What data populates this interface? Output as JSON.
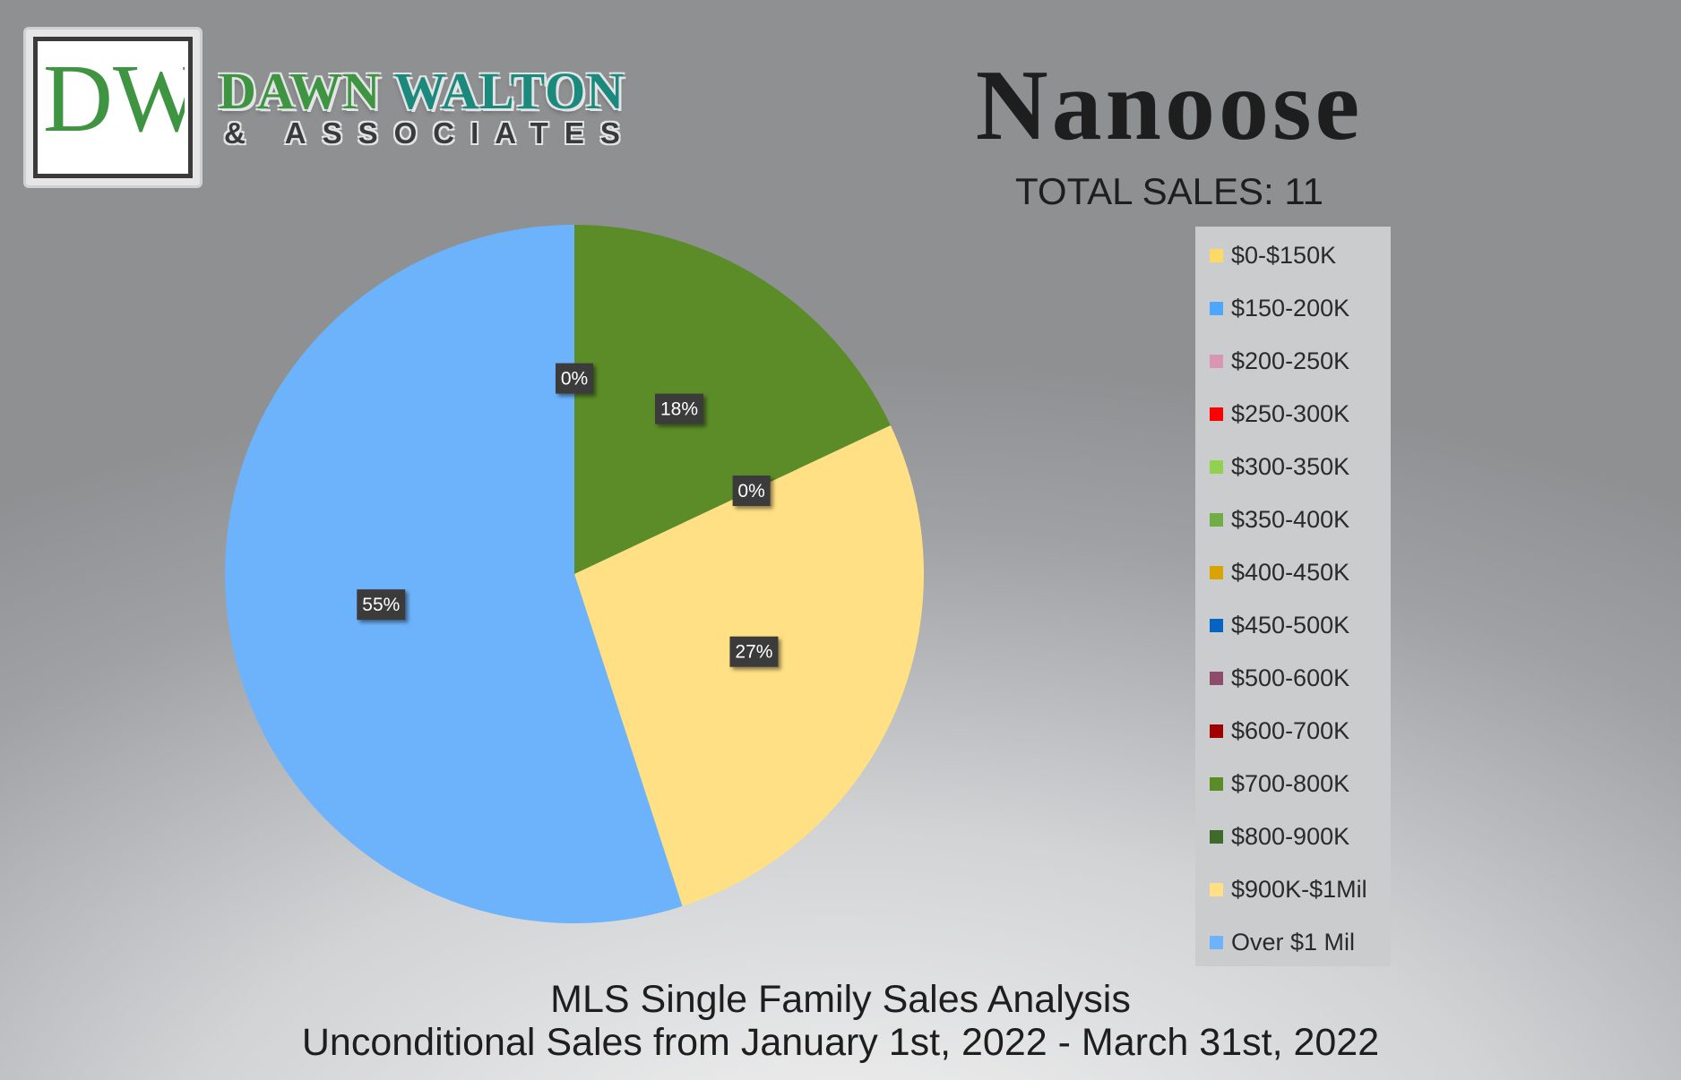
{
  "brand": {
    "logo_letters": "DW",
    "name_first": "DAWN",
    "name_second": "WALTON",
    "subtitle": "& ASSOCIATES",
    "colors": {
      "green": "#3f9442",
      "teal": "#1b8a7c",
      "dark": "#3a3a3a"
    }
  },
  "header": {
    "title": "Nanoose",
    "total_sales": "TOTAL SALES: 11"
  },
  "footer": {
    "line1": "MLS Single Family Sales Analysis",
    "line2": "Unconditional Sales from January 1st, 2022 - March 31st, 2022"
  },
  "chart_data": {
    "type": "pie",
    "title": "",
    "start_angle_deg": 0,
    "direction": "clockwise",
    "legend_placement": "right",
    "slices": [
      {
        "label": "$0-$150K",
        "value": 0,
        "color": "#ffd966"
      },
      {
        "label": "$150-200K",
        "value": 0,
        "color": "#4da6ff"
      },
      {
        "label": "$200-250K",
        "value": 0,
        "color": "#d896b4"
      },
      {
        "label": "$250-300K",
        "value": 0,
        "color": "#ff0000"
      },
      {
        "label": "$300-350K",
        "value": 0,
        "color": "#92d050"
      },
      {
        "label": "$350-400K",
        "value": 0,
        "color": "#70ad47"
      },
      {
        "label": "$400-450K",
        "value": 0,
        "color": "#d9a300"
      },
      {
        "label": "$450-500K",
        "value": 0,
        "color": "#0563c1"
      },
      {
        "label": "$500-600K",
        "value": 0,
        "color": "#8e4b6c"
      },
      {
        "label": "$600-700K",
        "value": 0,
        "color": "#a00000"
      },
      {
        "label": "$700-800K",
        "value": 18,
        "color": "#5b8c28"
      },
      {
        "label": "$800-900K",
        "value": 0,
        "color": "#3e6b2a"
      },
      {
        "label": "$900K-$1Mil",
        "value": 27,
        "color": "#ffe084"
      },
      {
        "label": "Over $1 Mil",
        "value": 55,
        "color": "#6db3fb"
      }
    ],
    "data_labels": [
      {
        "text": "0%",
        "slice": "$0-$150K"
      },
      {
        "text": "18%",
        "slice": "$700-800K"
      },
      {
        "text": "0%",
        "slice": "$800-900K"
      },
      {
        "text": "27%",
        "slice": "$900K-$1Mil"
      },
      {
        "text": "55%",
        "slice": "Over $1 Mil"
      }
    ]
  }
}
